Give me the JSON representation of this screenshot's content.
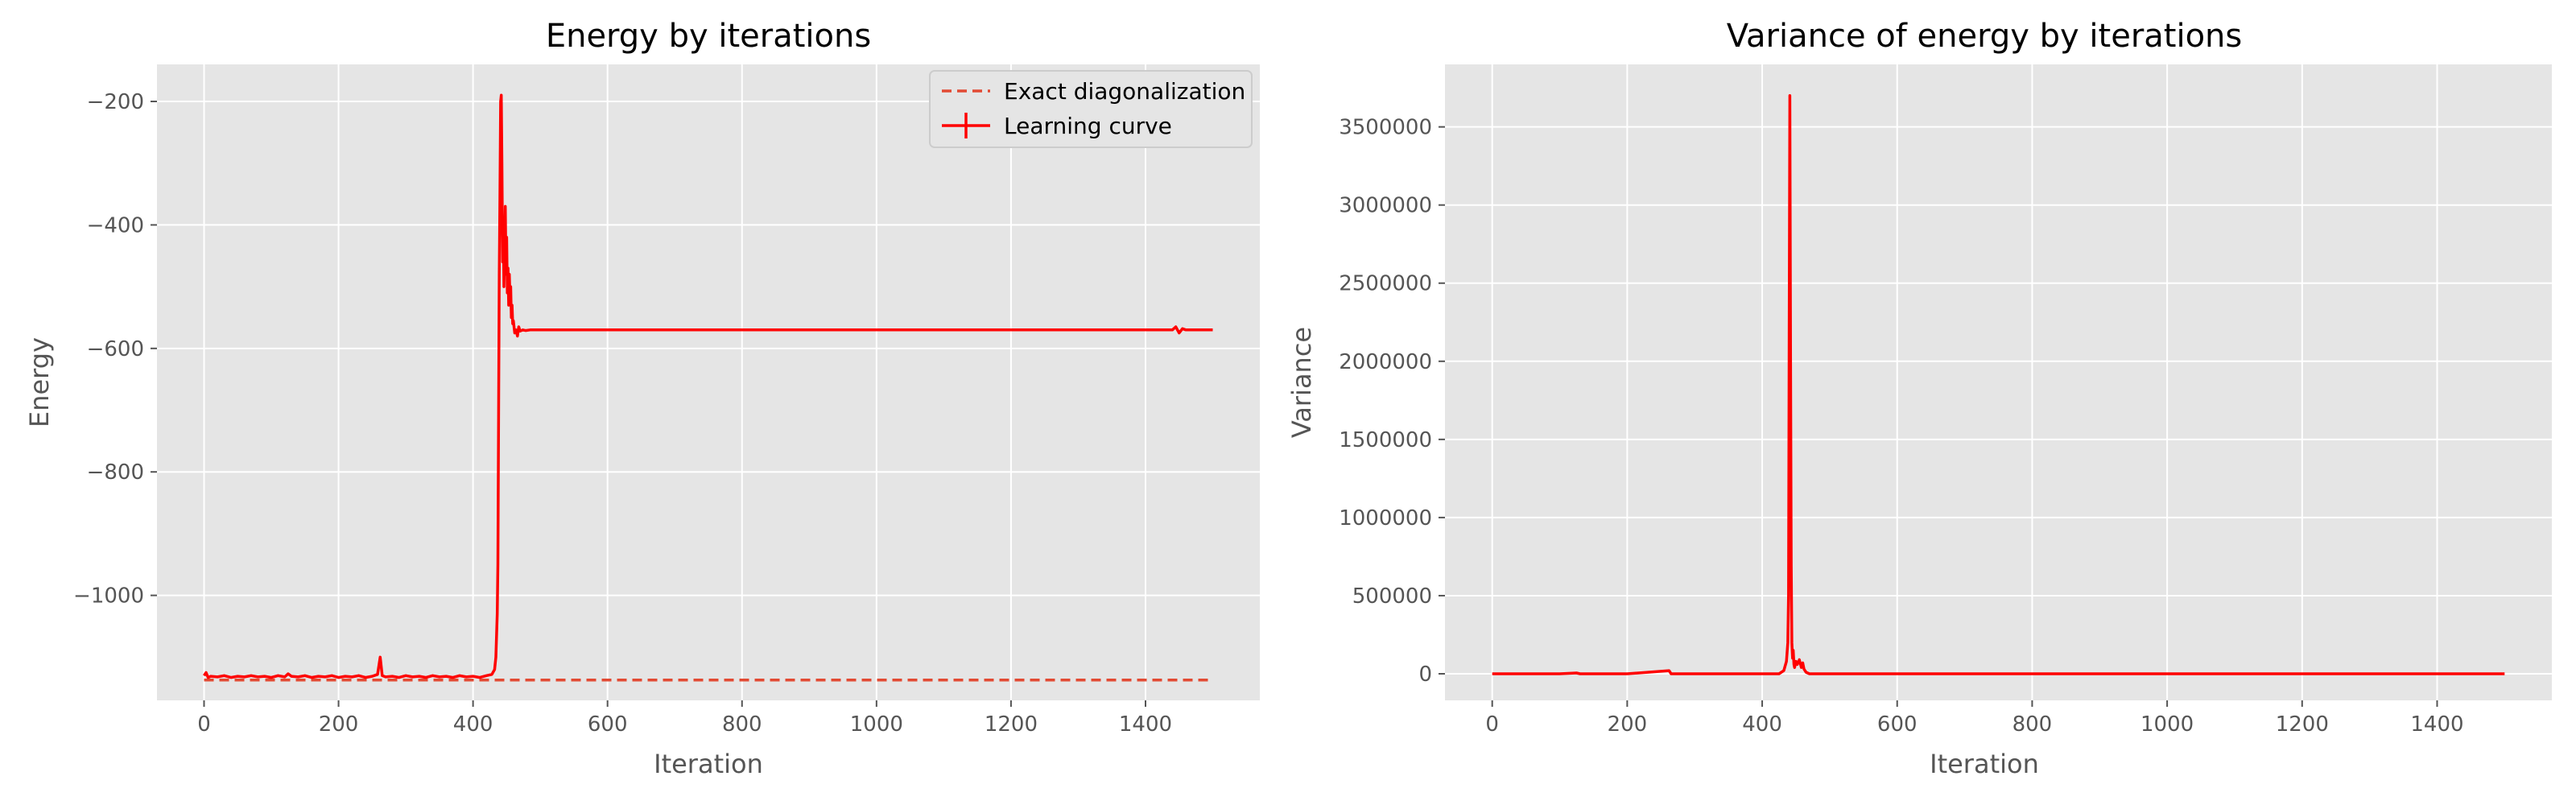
{
  "chart_data": [
    {
      "type": "line",
      "title": "Energy by iterations",
      "xlabel": "Iteration",
      "ylabel": "Energy",
      "xlim": [
        -70,
        1570
      ],
      "ylim": [
        -1170,
        -140
      ],
      "xticks": [
        0,
        200,
        400,
        600,
        800,
        1000,
        1200,
        1400
      ],
      "yticks": [
        -1000,
        -800,
        -600,
        -400,
        -200
      ],
      "grid": true,
      "legend_position": "top-right",
      "series": [
        {
          "name": "Exact diagonalization",
          "style": "dashed",
          "color": "#e24a33",
          "x": [
            0,
            1500
          ],
          "y": [
            -1137,
            -1137
          ]
        },
        {
          "name": "Learning curve",
          "style": "solid",
          "color": "#ff0000",
          "x": [
            0,
            3,
            6,
            10,
            20,
            30,
            40,
            50,
            60,
            70,
            80,
            90,
            100,
            110,
            120,
            125,
            130,
            140,
            150,
            160,
            170,
            180,
            190,
            200,
            210,
            220,
            230,
            240,
            250,
            258,
            262,
            265,
            270,
            280,
            290,
            300,
            310,
            320,
            330,
            340,
            350,
            360,
            370,
            380,
            390,
            400,
            410,
            420,
            428,
            432,
            434,
            436,
            437,
            438,
            439,
            440,
            441,
            442,
            443,
            444,
            445,
            446,
            447,
            448,
            449,
            450,
            451,
            452,
            453,
            454,
            455,
            456,
            457,
            458,
            459,
            460,
            462,
            464,
            466,
            468,
            470,
            474,
            478,
            485,
            500,
            550,
            600,
            650,
            700,
            750,
            800,
            850,
            900,
            950,
            1000,
            1050,
            1100,
            1150,
            1200,
            1250,
            1300,
            1350,
            1400,
            1440,
            1445,
            1450,
            1455,
            1460,
            1500
          ],
          "y": [
            -1130,
            -1125,
            -1133,
            -1131,
            -1132,
            -1130,
            -1133,
            -1131,
            -1132,
            -1130,
            -1132,
            -1131,
            -1133,
            -1130,
            -1132,
            -1127,
            -1131,
            -1132,
            -1130,
            -1133,
            -1131,
            -1132,
            -1130,
            -1133,
            -1131,
            -1132,
            -1130,
            -1133,
            -1131,
            -1128,
            -1100,
            -1130,
            -1132,
            -1131,
            -1133,
            -1130,
            -1132,
            -1131,
            -1133,
            -1130,
            -1132,
            -1131,
            -1133,
            -1130,
            -1132,
            -1131,
            -1133,
            -1130,
            -1128,
            -1120,
            -1100,
            -1030,
            -950,
            -700,
            -480,
            -360,
            -200,
            -190,
            -300,
            -460,
            -400,
            -500,
            -430,
            -370,
            -480,
            -420,
            -510,
            -470,
            -530,
            -480,
            -520,
            -500,
            -550,
            -530,
            -560,
            -555,
            -575,
            -570,
            -580,
            -565,
            -572,
            -570,
            -571,
            -570,
            -570,
            -570,
            -570,
            -570,
            -570,
            -570,
            -570,
            -570,
            -570,
            -570,
            -570,
            -570,
            -570,
            -570,
            -570,
            -570,
            -570,
            -570,
            -570,
            -570,
            -565,
            -575,
            -568,
            -570,
            -570
          ]
        }
      ]
    },
    {
      "type": "line",
      "title": "Variance of energy by iterations",
      "xlabel": "Iteration",
      "ylabel": "Variance",
      "xlim": [
        -70,
        1570
      ],
      "ylim": [
        -170000,
        3900000
      ],
      "xticks": [
        0,
        200,
        400,
        600,
        800,
        1000,
        1200,
        1400
      ],
      "yticks": [
        0,
        500000,
        1000000,
        1500000,
        2000000,
        2500000,
        3000000,
        3500000
      ],
      "grid": true,
      "series": [
        {
          "name": "Variance",
          "color": "#ff0000",
          "x": [
            0,
            100,
            125,
            130,
            200,
            262,
            265,
            270,
            300,
            400,
            425,
            432,
            436,
            438,
            439,
            440,
            441,
            442,
            443,
            444,
            445,
            446,
            447,
            448,
            450,
            452,
            455,
            458,
            460,
            462,
            465,
            470,
            500,
            800,
            1200,
            1500
          ],
          "y": [
            0,
            0,
            5000,
            0,
            0,
            20000,
            0,
            0,
            0,
            0,
            0,
            20000,
            80000,
            200000,
            500000,
            2200000,
            3700000,
            2000000,
            700000,
            200000,
            100000,
            150000,
            60000,
            40000,
            80000,
            60000,
            90000,
            40000,
            70000,
            30000,
            10000,
            0,
            0,
            0,
            0,
            0
          ]
        }
      ]
    }
  ]
}
